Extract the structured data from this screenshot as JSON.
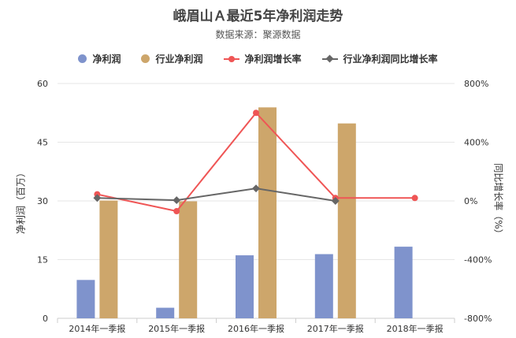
{
  "chart_data": {
    "type": "bar+line",
    "title": "峨眉山Ａ最近5年净利润走势",
    "subtitle": "数据来源：聚源数据",
    "categories": [
      "2014年一季报",
      "2015年一季报",
      "2016年一季报",
      "2017年一季报",
      "2018年一季报"
    ],
    "ylabel": "净利润（百万）",
    "y2label": "同比增长率（%）",
    "ylim": [
      0,
      60
    ],
    "yticks": [
      0,
      15,
      30,
      45,
      60
    ],
    "y2lim": [
      -800,
      800
    ],
    "y2ticks": [
      "-800%",
      "-400%",
      "0%",
      "400%",
      "800%"
    ],
    "y2tickvalues": [
      -800,
      -400,
      0,
      400,
      800
    ],
    "series": [
      {
        "name": "净利润",
        "kind": "bar",
        "axis": "left",
        "color": "#7f93cc",
        "values": [
          9.8,
          2.7,
          16.1,
          16.4,
          18.3
        ]
      },
      {
        "name": "行业净利润",
        "kind": "bar",
        "axis": "left",
        "color": "#cda66b",
        "values": [
          30.1,
          29.9,
          53.9,
          49.8,
          null
        ]
      },
      {
        "name": "净利润增长率",
        "kind": "line",
        "axis": "right",
        "color": "#ef5555",
        "marker": "circle",
        "values": [
          45,
          -70,
          600,
          20,
          20
        ]
      },
      {
        "name": "行业净利润同比增长率",
        "kind": "line",
        "axis": "right",
        "color": "#666666",
        "marker": "diamond",
        "values": [
          20,
          5,
          85,
          0,
          null
        ]
      }
    ]
  }
}
